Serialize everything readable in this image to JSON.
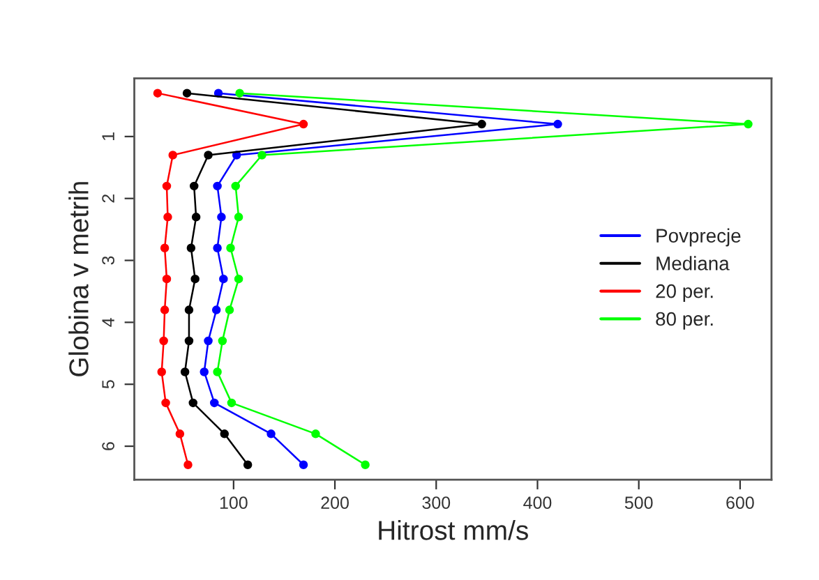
{
  "chart_data": {
    "type": "line",
    "xlabel": "Hitrost mm/s",
    "ylabel": "Globina v metrih",
    "xlim": [
      2,
      631
    ],
    "xticks": [
      100,
      200,
      300,
      400,
      500,
      600
    ],
    "ylim": [
      6.54,
      0.06
    ],
    "yticks": [
      1,
      2,
      3,
      4,
      5,
      6
    ],
    "grid": false,
    "legend": "right",
    "marker": "circle",
    "line_style": "solid",
    "orientation": "horizontal",
    "x": [
      0.3,
      0.8,
      1.3,
      1.8,
      2.3,
      2.8,
      3.3,
      3.8,
      4.3,
      4.8,
      5.3,
      5.8,
      6.3
    ],
    "series": [
      {
        "name": "Povprecje",
        "color": "#0000ff",
        "values": [
          85,
          420,
          103,
          84,
          88,
          84,
          90,
          83,
          75,
          71,
          81,
          137,
          169
        ]
      },
      {
        "name": "Mediana",
        "color": "#000000",
        "values": [
          54,
          345,
          75,
          61,
          63,
          58,
          62,
          56,
          56,
          52,
          60,
          91,
          114
        ]
      },
      {
        "name": "20 per.",
        "color": "#ff0000",
        "values": [
          25,
          169,
          40,
          34,
          35,
          32,
          34,
          32,
          31,
          29,
          33,
          47,
          55
        ]
      },
      {
        "name": "80 per.",
        "color": "#00ff00",
        "values": [
          106,
          608,
          128,
          102,
          105,
          97,
          105,
          96,
          89,
          84,
          98,
          181,
          230
        ]
      }
    ]
  }
}
